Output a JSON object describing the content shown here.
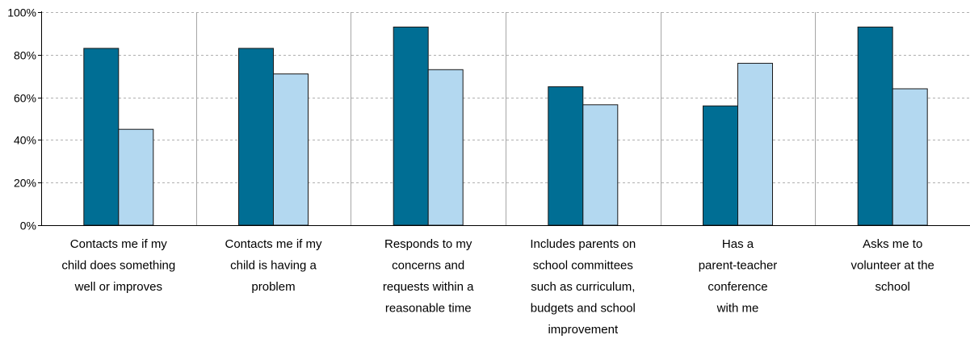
{
  "chart_data": {
    "type": "bar",
    "title": "",
    "xlabel": "",
    "ylabel": "",
    "ylim": [
      0,
      100
    ],
    "yticks": [
      0,
      20,
      40,
      60,
      80,
      100
    ],
    "ytick_labels": [
      "0%",
      "20%",
      "40%",
      "60%",
      "80%",
      "100%"
    ],
    "grid": true,
    "legend": "none",
    "categories": [
      [
        "Contacts me if my",
        "child does something",
        "well or improves"
      ],
      [
        "Contacts me if my",
        "child is having a",
        "problem"
      ],
      [
        "Responds to my",
        "concerns and",
        "requests within a",
        "reasonable time"
      ],
      [
        "Includes parents on",
        "school committees",
        "such as curriculum,",
        "budgets and school",
        "improvement"
      ],
      [
        "Has a",
        "parent-teacher",
        "conference",
        "with me"
      ],
      [
        "Asks me to",
        "volunteer at the",
        "school"
      ]
    ],
    "series": [
      {
        "values": [
          83,
          83,
          93,
          65,
          56,
          93
        ],
        "color": "#006e94"
      },
      {
        "values": [
          45,
          71,
          73,
          56.5,
          76,
          64
        ],
        "color": "#b3d8f0"
      }
    ]
  }
}
